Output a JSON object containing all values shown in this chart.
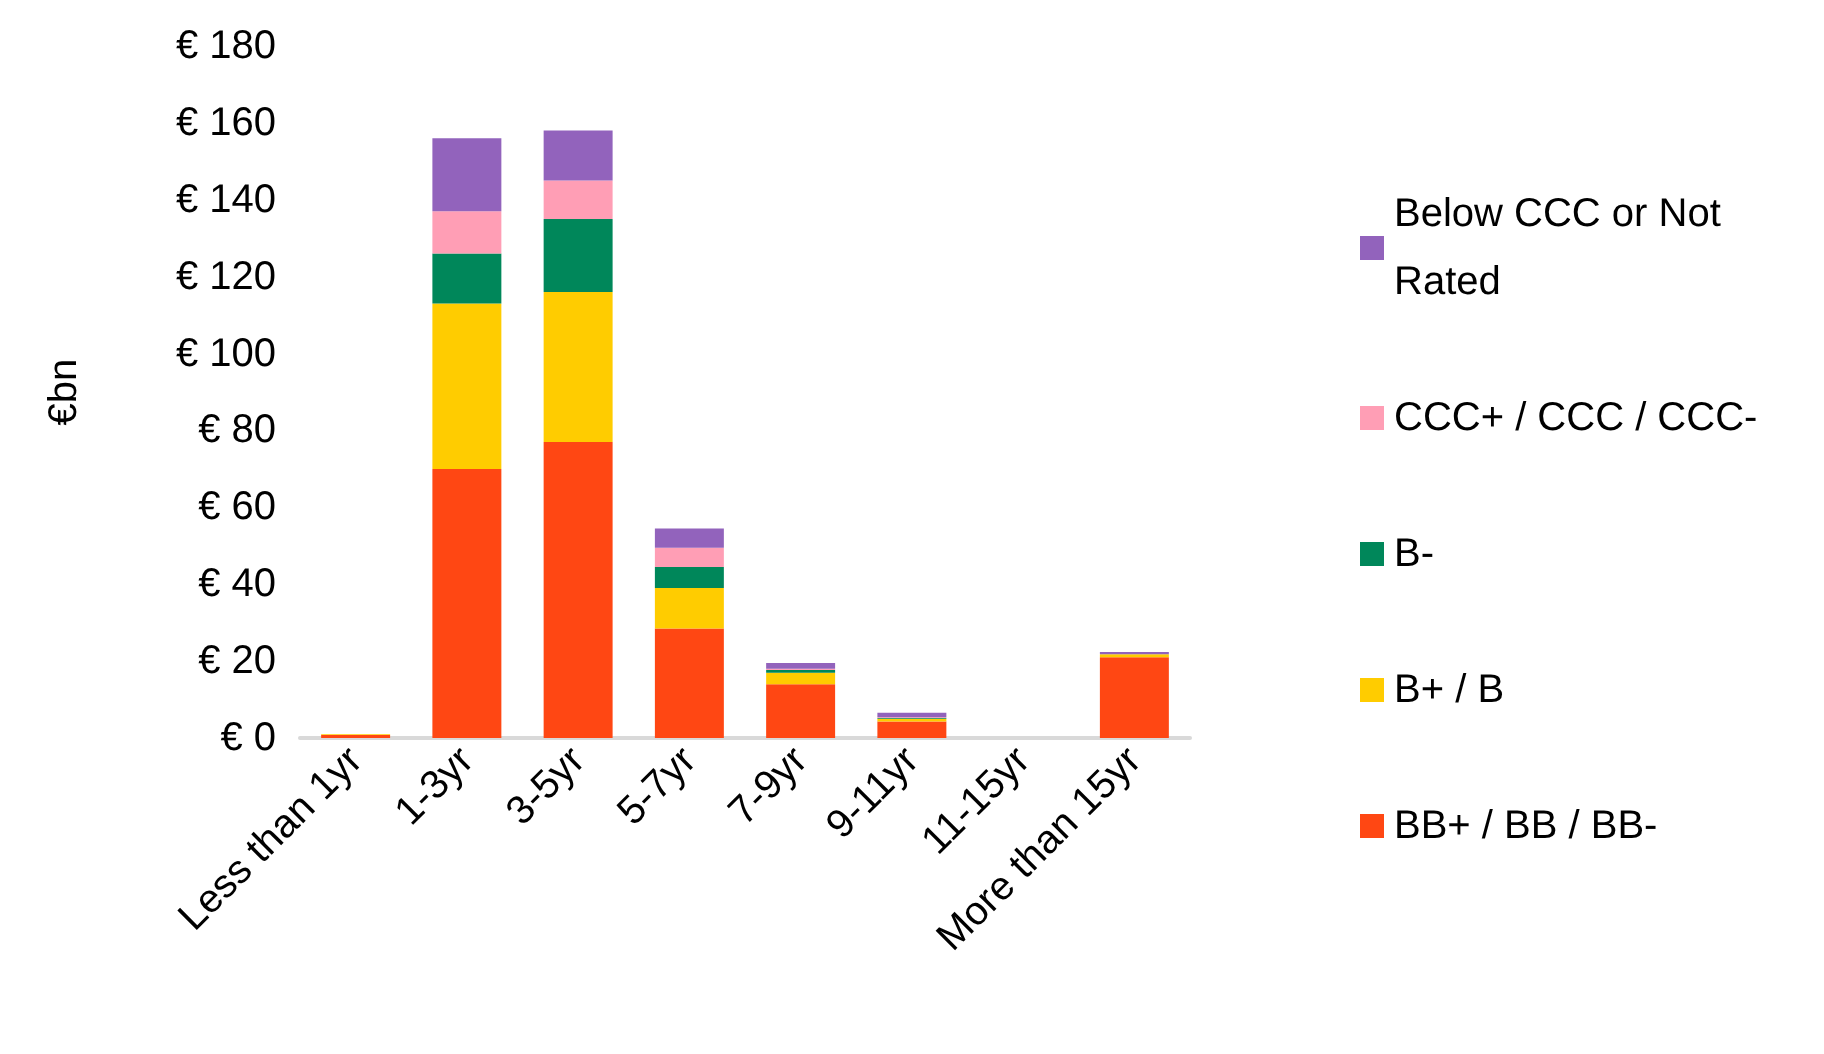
{
  "chart_data": {
    "type": "bar",
    "stacked": true,
    "ylabel": "€bn",
    "categories": [
      "Less than 1yr",
      "1-3yr",
      "3-5yr",
      "5-7yr",
      "7-9yr",
      "9-11yr",
      "11-15yr",
      "More than 15yr"
    ],
    "series": [
      {
        "name": "BB+ / BB / BB-",
        "color": "#ff4713",
        "values": [
          0.8,
          70,
          77,
          28.5,
          14,
          4.3,
          0,
          21
        ]
      },
      {
        "name": "B+ / B",
        "color": "#ffcc00",
        "values": [
          0.2,
          43,
          39,
          10.5,
          3,
          0.7,
          0,
          0.8
        ]
      },
      {
        "name": "B-",
        "color": "#00875a",
        "values": [
          0,
          13,
          19,
          5.5,
          0.7,
          0.2,
          0,
          0
        ]
      },
      {
        "name": "CCC+ / CCC / CCC-",
        "color": "#ff9eb5",
        "values": [
          0,
          11,
          10,
          5,
          0.3,
          0.2,
          0,
          0
        ]
      },
      {
        "name": "Below CCC or Not Rated",
        "color": "#9263bc",
        "values": [
          0,
          19,
          13,
          5,
          1.5,
          1.2,
          0,
          0.6
        ]
      }
    ],
    "ylim": [
      0,
      180
    ],
    "yticks": [
      {
        "value": 0,
        "label": "€ 0"
      },
      {
        "value": 20,
        "label": "€ 20"
      },
      {
        "value": 40,
        "label": "€ 40"
      },
      {
        "value": 60,
        "label": "€ 60"
      },
      {
        "value": 80,
        "label": "€ 80"
      },
      {
        "value": 100,
        "label": "€ 100"
      },
      {
        "value": 120,
        "label": "€ 120"
      },
      {
        "value": 140,
        "label": "€ 140"
      },
      {
        "value": 160,
        "label": "€ 160"
      },
      {
        "value": 180,
        "label": "€ 180"
      }
    ],
    "grid": false,
    "legend": "right"
  }
}
